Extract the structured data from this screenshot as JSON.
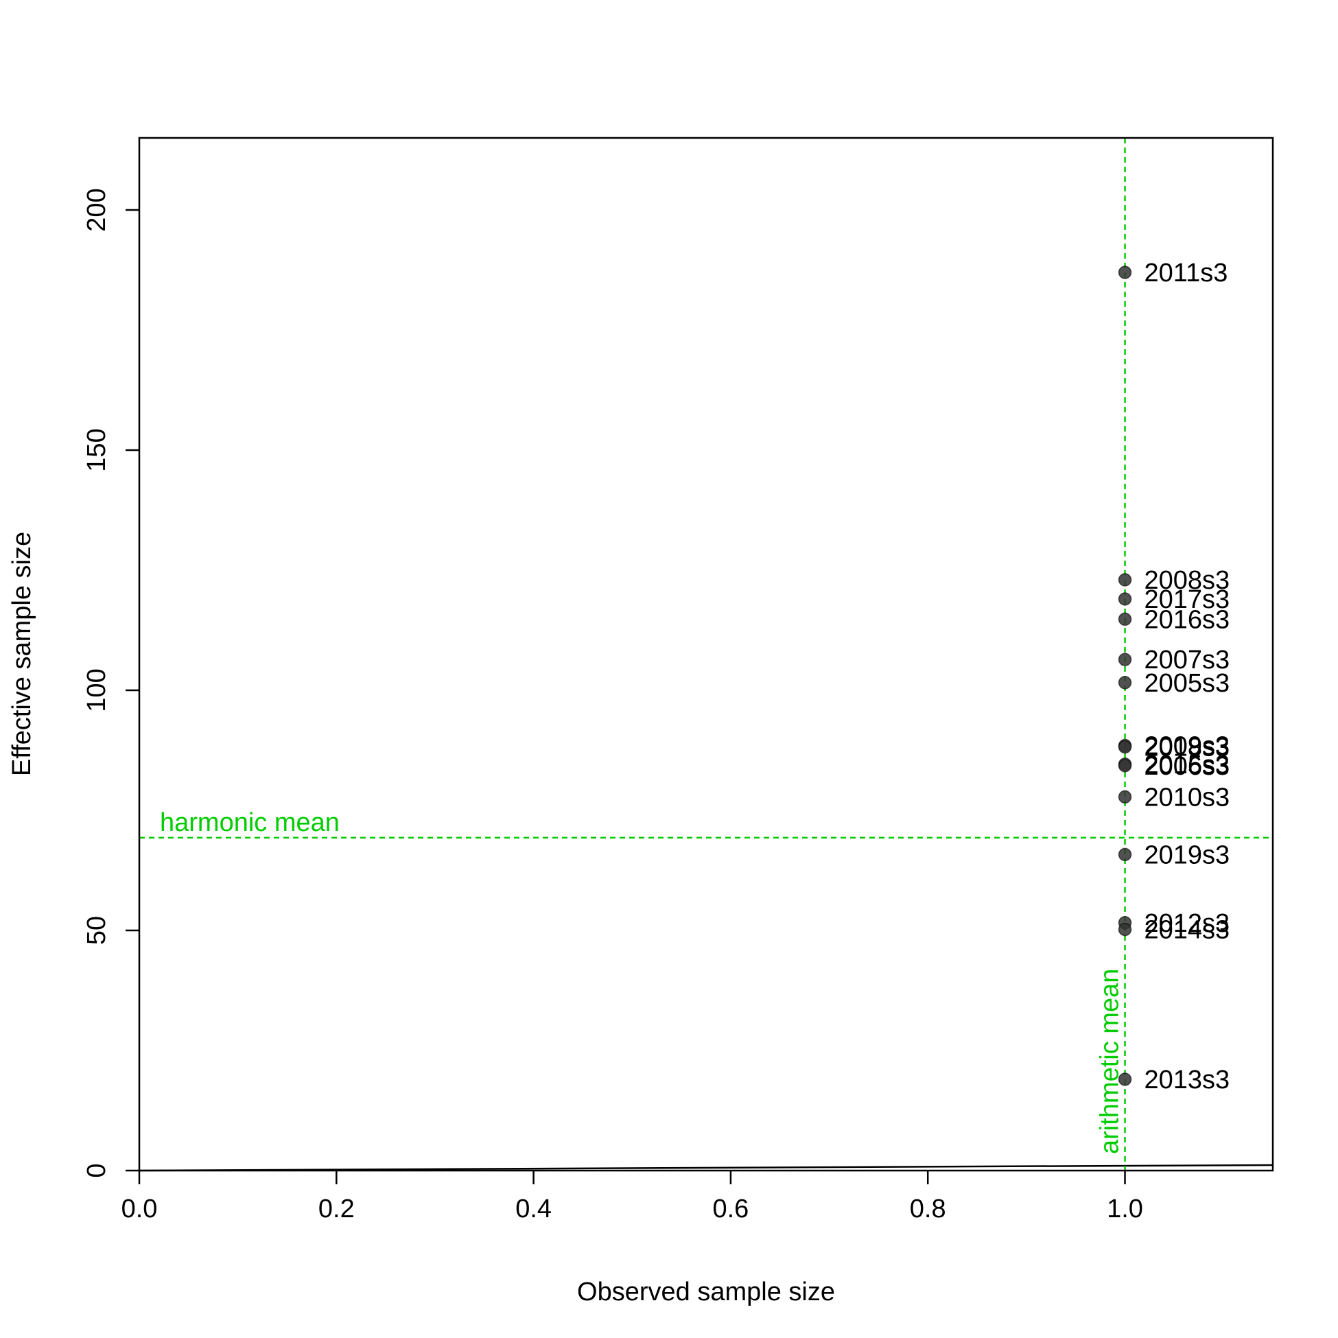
{
  "chart_data": {
    "type": "scatter",
    "title": "",
    "xlabel": "Observed sample size",
    "ylabel": "Effective sample size",
    "xlim": [
      0,
      1.15
    ],
    "ylim": [
      0,
      215
    ],
    "xticks": [
      "0.0",
      "0.2",
      "0.4",
      "0.6",
      "0.8",
      "1.0"
    ],
    "xtick_values": [
      0,
      0.2,
      0.4,
      0.6,
      0.8,
      1.0
    ],
    "yticks": [
      "0",
      "50",
      "100",
      "150",
      "200"
    ],
    "ytick_values": [
      0,
      50,
      100,
      150,
      200
    ],
    "grid": false,
    "point_color": "#333333",
    "reference_color": "#00cc00",
    "points": [
      {
        "x": 1.0,
        "y": 187,
        "label": "2011s3"
      },
      {
        "x": 1.0,
        "y": 123,
        "label": "2008s3"
      },
      {
        "x": 1.0,
        "y": 119,
        "label": "2017s3"
      },
      {
        "x": 1.0,
        "y": 114.8,
        "label": "2016s3"
      },
      {
        "x": 1.0,
        "y": 106.4,
        "label": "2007s3"
      },
      {
        "x": 1.0,
        "y": 101.6,
        "label": "2005s3"
      },
      {
        "x": 1.0,
        "y": 88.5,
        "label": "2009s3"
      },
      {
        "x": 1.0,
        "y": 88.2,
        "label": "2018s3"
      },
      {
        "x": 1.0,
        "y": 84.6,
        "label": "2015s3"
      },
      {
        "x": 1.0,
        "y": 84.3,
        "label": "2006s3"
      },
      {
        "x": 1.0,
        "y": 77.8,
        "label": "2010s3"
      },
      {
        "x": 1.0,
        "y": 65.8,
        "label": "2019s3"
      },
      {
        "x": 1.0,
        "y": 51.6,
        "label": "2012s3"
      },
      {
        "x": 1.0,
        "y": 50.2,
        "label": "2014s3"
      },
      {
        "x": 1.0,
        "y": 19,
        "label": "2013s3"
      }
    ],
    "reference_lines": [
      {
        "orientation": "horizontal",
        "value": 69.3,
        "label": "harmonic mean"
      },
      {
        "orientation": "vertical",
        "value": 1.0,
        "label": "arithmetic mean"
      }
    ],
    "identity_line": {
      "from": [
        0,
        0
      ],
      "to": [
        1.15,
        1.15
      ]
    }
  }
}
